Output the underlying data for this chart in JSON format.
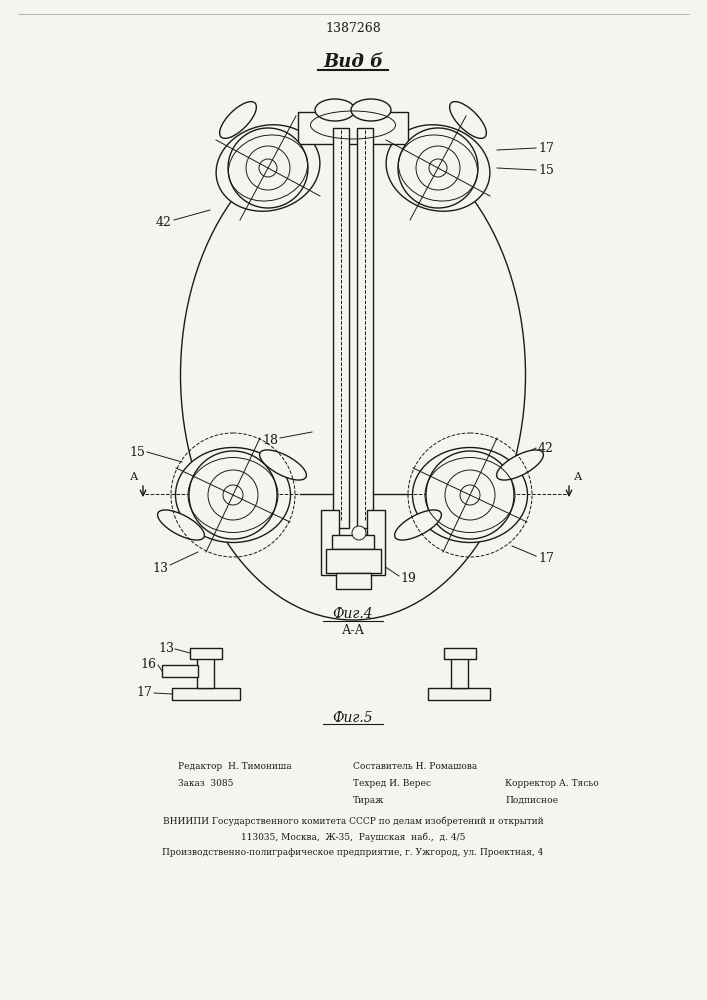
{
  "title_patent": "1387268",
  "title_view": "Вид б",
  "fig4_label": "Фиг.4",
  "fig5_label": "Фиг.5",
  "section_label": "А-А",
  "bg_color": "#f5f5f0",
  "line_color": "#1a1a1a"
}
